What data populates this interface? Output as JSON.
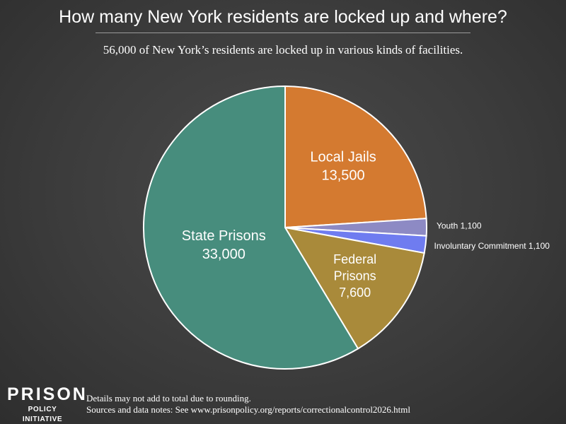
{
  "chart_data": {
    "type": "pie",
    "title": "How many New York residents are locked up and where?",
    "subtitle": "56,000 of New York’s residents are locked up in various kinds of facilities.",
    "slices": [
      {
        "label": "Local Jails",
        "value": 13500,
        "value_label": "13,500",
        "color": "#d47a30"
      },
      {
        "label": "Youth",
        "value": 1100,
        "value_label": "1,100",
        "color": "#8d8ac4"
      },
      {
        "label": "Involuntary Commitment",
        "value": 1100,
        "value_label": "1,100",
        "color": "#6f7cf0"
      },
      {
        "label": "Federal Prisons",
        "value": 7600,
        "value_label": "7,600",
        "color": "#a98a3a"
      },
      {
        "label": "State Prisons",
        "value": 33000,
        "value_label": "33,000",
        "color": "#478d7d"
      }
    ]
  },
  "footer": {
    "logo_main": "PRISON",
    "logo_sub": "POLICY INITIATIVE",
    "note_rounding": "Details may not add to total due to rounding.",
    "note_sources": "Sources and data notes: See www.prisonpolicy.org/reports/correctionalcontrol2026.html"
  }
}
